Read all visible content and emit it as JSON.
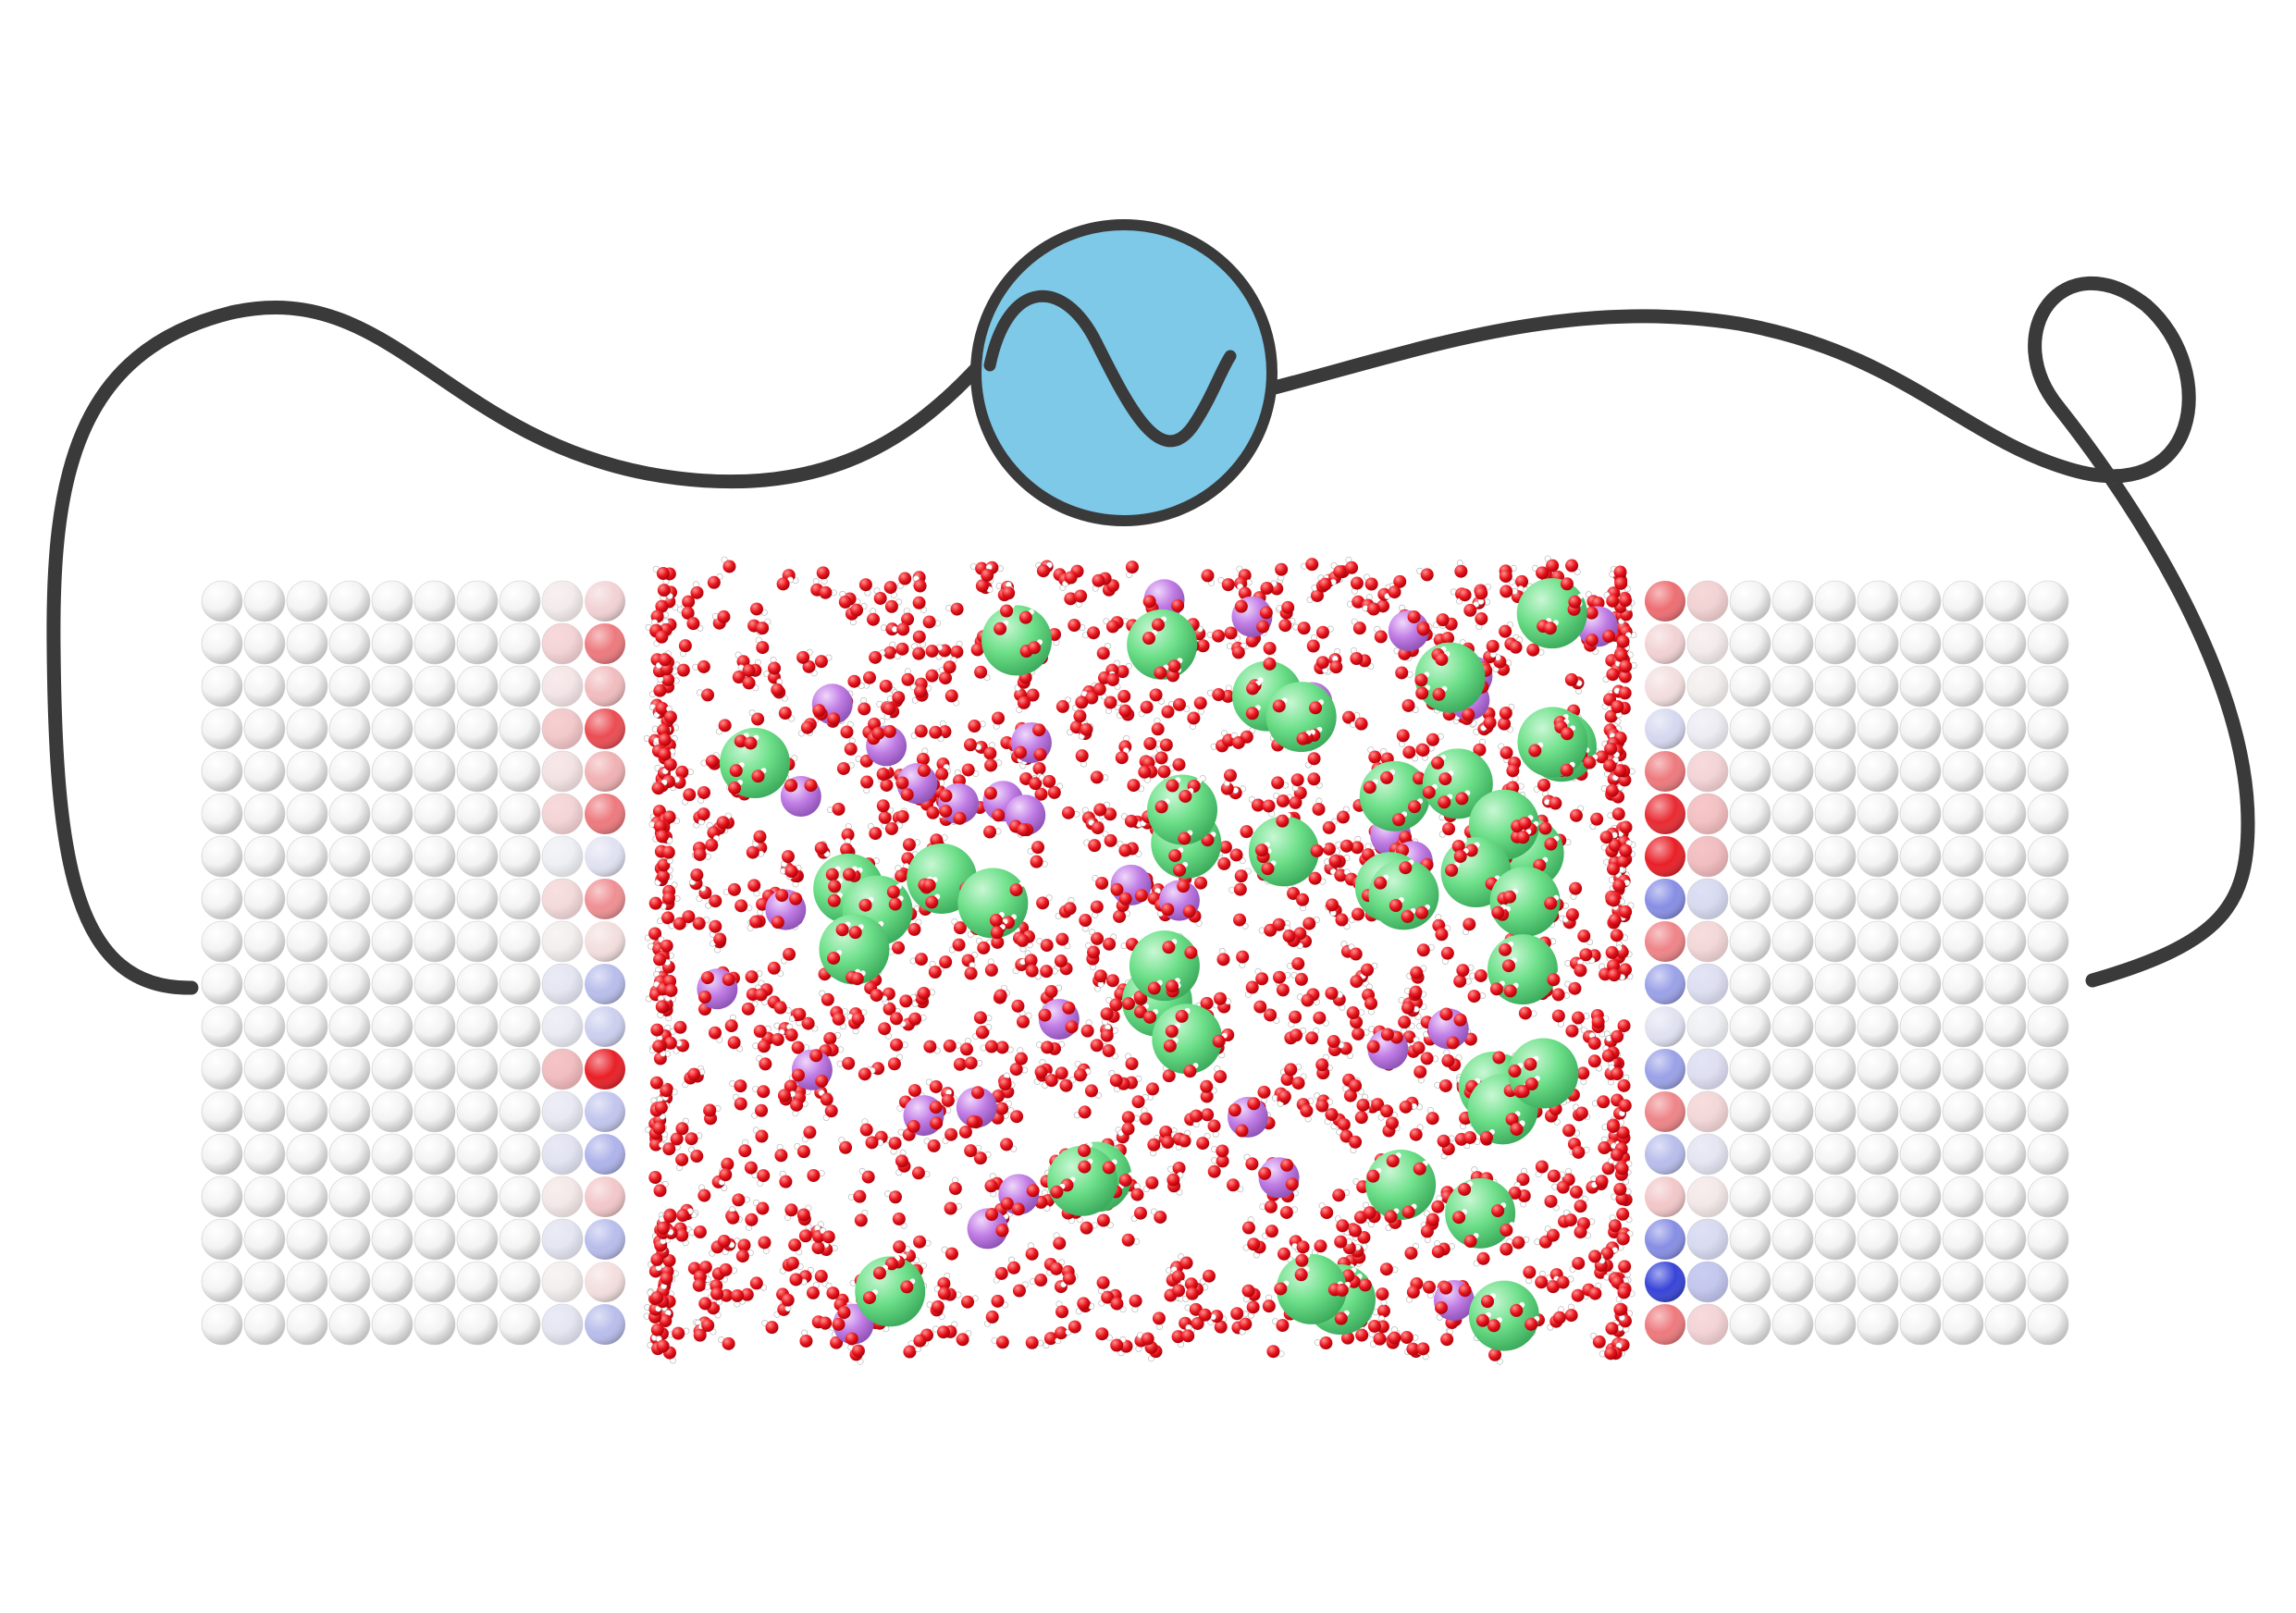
{
  "diagram": {
    "wire_color": "#3a3a3a",
    "source_fill": "#7ec8e8",
    "source_icon": "sine-wave-icon",
    "electrode_atom_color": "#ffffff",
    "solvent_oxygen_color": "#e8141c",
    "solvent_hydrogen_color": "#ffffff",
    "anion_color": "#6ee08a",
    "cation_color": "#c27fe6",
    "charge_positive_color": "#e8141c",
    "charge_negative_color": "#2d3bd6",
    "left_electrode": {
      "columns": 10,
      "rows": 18,
      "surface_charges": [
        0.15,
        0.55,
        0.25,
        0.75,
        0.3,
        0.55,
        -0.1,
        0.45,
        0.1,
        -0.3,
        -0.2,
        0.95,
        -0.25,
        -0.35,
        0.2,
        -0.3,
        0.1,
        -0.3
      ]
    },
    "right_electrode": {
      "columns": 10,
      "rows": 18,
      "surface_charges": [
        0.6,
        0.15,
        0.1,
        -0.15,
        0.55,
        0.9,
        0.95,
        -0.55,
        0.5,
        -0.45,
        -0.1,
        -0.45,
        0.5,
        -0.3,
        0.2,
        -0.55,
        -0.95,
        0.55
      ]
    }
  }
}
